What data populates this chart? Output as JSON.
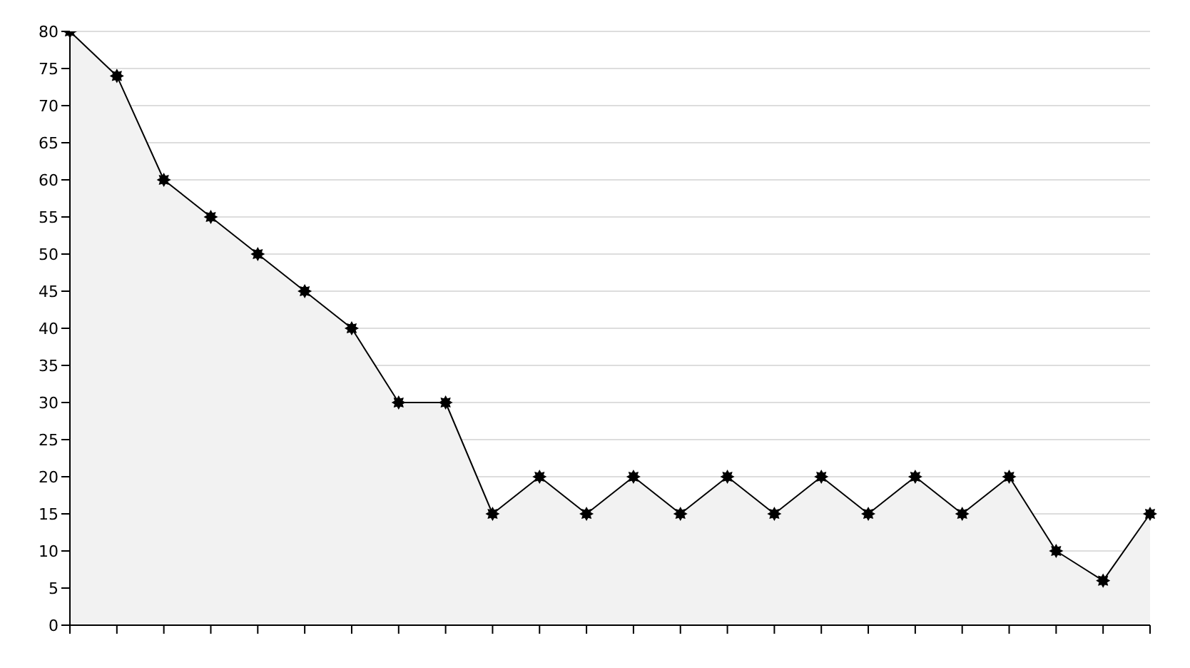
{
  "chart_data": {
    "type": "area",
    "categories": [
      null,
      null,
      null,
      null,
      null,
      null,
      null,
      null,
      null,
      null,
      null,
      null,
      null,
      null,
      null,
      null,
      null,
      null,
      null,
      null,
      null,
      null,
      null,
      null
    ],
    "series": [
      {
        "color": "#000000",
        "values": [
          80,
          74,
          60,
          55,
          50,
          45,
          40,
          30,
          30,
          15,
          20,
          15,
          20,
          15,
          20,
          15,
          20,
          15,
          20,
          15,
          20,
          10,
          6,
          15
        ]
      }
    ],
    "ylim": [
      0,
      80
    ],
    "yticks": [
      0,
      5,
      10,
      15,
      20,
      25,
      30,
      35,
      40,
      45,
      50,
      55,
      60,
      65,
      70,
      75,
      80
    ],
    "grid": "y",
    "marker": "star",
    "line_style": "solid"
  }
}
